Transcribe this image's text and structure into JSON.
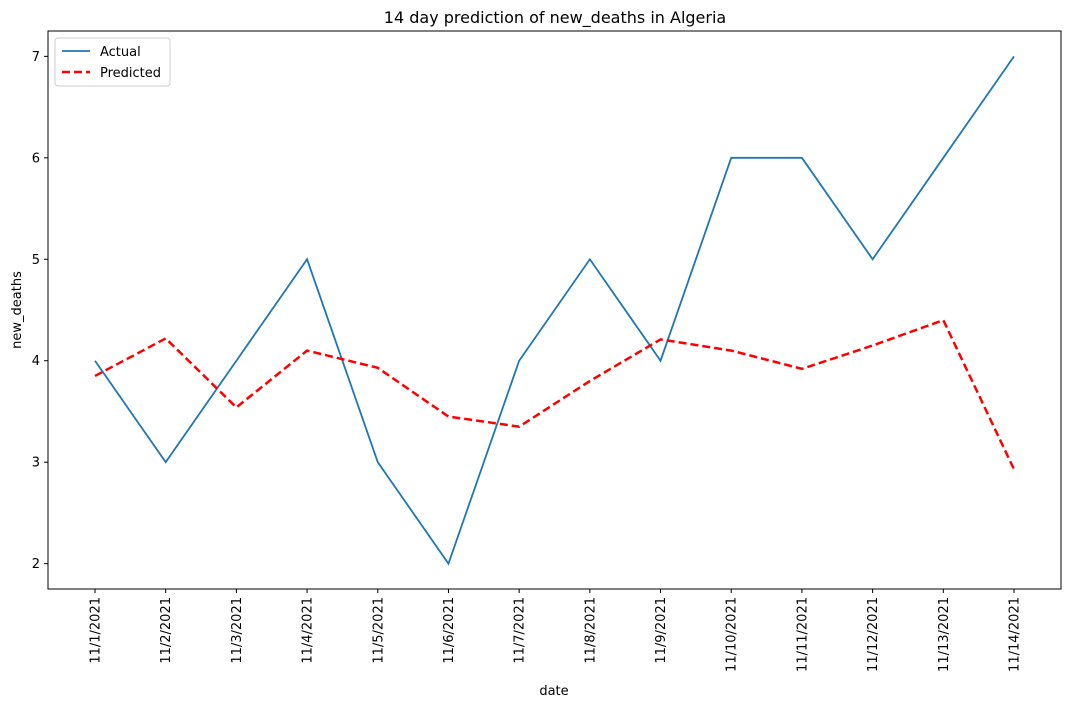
{
  "chart_data": {
    "type": "line",
    "title": "14 day prediction of new_deaths in Algeria",
    "xlabel": "date",
    "ylabel": "new_deaths",
    "categories": [
      "11/1/2021",
      "11/2/2021",
      "11/3/2021",
      "11/4/2021",
      "11/5/2021",
      "11/6/2021",
      "11/7/2021",
      "11/8/2021",
      "11/9/2021",
      "11/10/2021",
      "11/11/2021",
      "11/12/2021",
      "11/13/2021",
      "11/14/2021"
    ],
    "series": [
      {
        "name": "Actual",
        "color": "#1f77b4",
        "style": "solid",
        "values": [
          4,
          3,
          4,
          5,
          3,
          2,
          4,
          5,
          4,
          6,
          6,
          5,
          6,
          7
        ]
      },
      {
        "name": "Predicted",
        "color": "#ff0000",
        "style": "dashed",
        "values": [
          3.85,
          4.22,
          3.54,
          4.1,
          3.93,
          3.45,
          3.35,
          3.8,
          4.21,
          4.1,
          3.92,
          4.15,
          4.4,
          2.93
        ]
      }
    ],
    "ylim": [
      1.75,
      7.25
    ],
    "yticks": [
      2,
      3,
      4,
      5,
      6,
      7
    ],
    "grid": false,
    "legend_position": "upper-left"
  }
}
